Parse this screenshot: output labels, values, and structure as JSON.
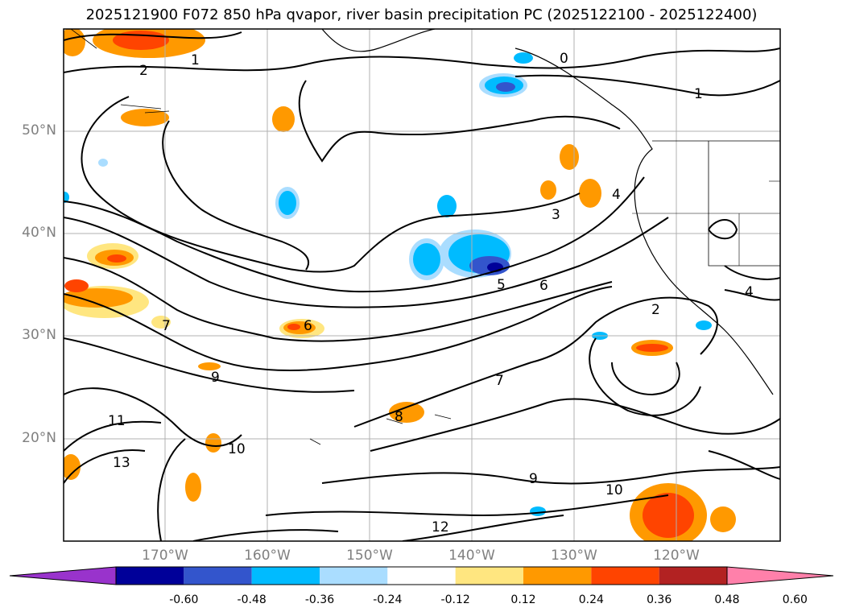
{
  "title": "2025121900 F072 850 hPa qvapor, river basin precipitation PC (2025122100 - 2025122400)",
  "longitude_ticks": [
    "170°W",
    "160°W",
    "150°W",
    "140°W",
    "130°W",
    "120°W"
  ],
  "latitude_ticks": [
    "50°N",
    "40°N",
    "30°N",
    "20°N"
  ],
  "contour_labels": [
    "0",
    "1",
    "2",
    "3",
    "4",
    "5",
    "6",
    "7",
    "8",
    "9",
    "10",
    "11",
    "12",
    "13"
  ],
  "colorbar": {
    "labels": [
      "-0.60",
      "-0.48",
      "-0.36",
      "-0.24",
      "-0.12",
      "0.12",
      "0.24",
      "0.36",
      "0.48",
      "0.60"
    ],
    "colors": [
      "#9933cc",
      "#000099",
      "#3355cc",
      "#00bbff",
      "#aaddff",
      "#ffffff",
      "#ffe680",
      "#ff9900",
      "#ff4400",
      "#b22222",
      "#ff80aa"
    ]
  },
  "colors": {
    "positive_strong": "#ff4400",
    "positive_mid": "#ff9900",
    "positive_weak": "#ffe680",
    "negative_weak": "#aaddff",
    "negative_mid": "#00bbff",
    "negative_strong": "#3355cc",
    "grid": "#b0b0b0",
    "tick_text": "#808080"
  }
}
